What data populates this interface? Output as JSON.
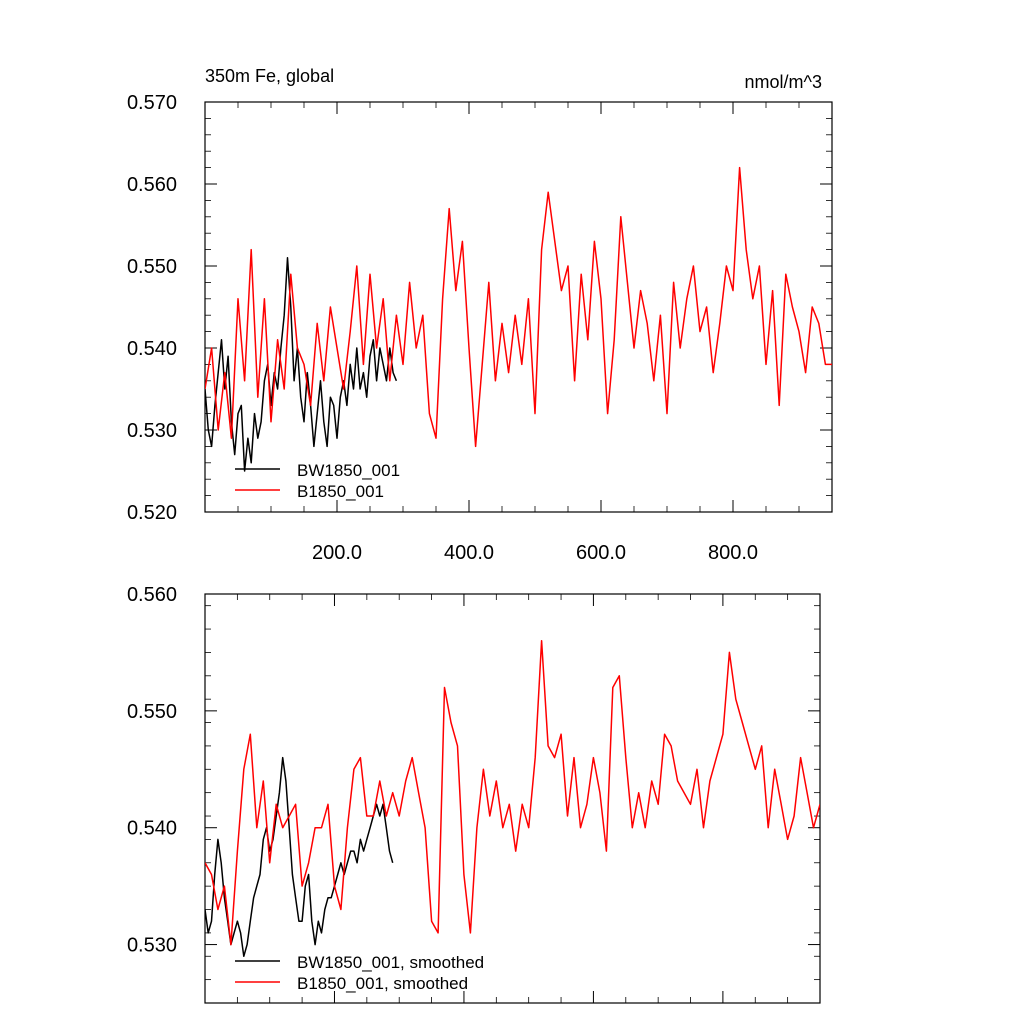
{
  "chart_data": [
    {
      "type": "line",
      "title": "350m Fe, global",
      "units": "nmol/m^3",
      "xlim": [
        0,
        950
      ],
      "ylim": [
        0.52,
        0.57
      ],
      "y_ticks": [
        0.52,
        0.53,
        0.54,
        0.55,
        0.56,
        0.57
      ],
      "y_tick_labels": [
        "0.520",
        "0.530",
        "0.540",
        "0.550",
        "0.560",
        "0.570"
      ],
      "x_ticks": [
        200,
        400,
        600,
        800
      ],
      "x_tick_labels": [
        "200.0",
        "400.0",
        "600.0",
        "800.0"
      ],
      "legend_position": "bottom-left",
      "series": [
        {
          "name": "BW1850_001",
          "color": "#000000",
          "x": [
            0,
            5,
            10,
            15,
            20,
            25,
            30,
            35,
            40,
            45,
            50,
            55,
            60,
            65,
            70,
            75,
            80,
            85,
            90,
            95,
            100,
            105,
            110,
            115,
            120,
            125,
            130,
            135,
            140,
            145,
            150,
            155,
            160,
            165,
            170,
            175,
            180,
            185,
            190,
            195,
            200,
            205,
            210,
            215,
            220,
            225,
            230,
            235,
            240,
            245,
            250,
            255,
            260,
            265,
            270,
            275,
            280,
            285,
            290
          ],
          "y": [
            0.535,
            0.53,
            0.528,
            0.533,
            0.537,
            0.541,
            0.535,
            0.539,
            0.531,
            0.527,
            0.532,
            0.533,
            0.525,
            0.529,
            0.526,
            0.532,
            0.529,
            0.531,
            0.536,
            0.538,
            0.533,
            0.537,
            0.535,
            0.54,
            0.544,
            0.551,
            0.545,
            0.536,
            0.54,
            0.534,
            0.531,
            0.537,
            0.533,
            0.528,
            0.532,
            0.536,
            0.531,
            0.528,
            0.534,
            0.533,
            0.529,
            0.534,
            0.536,
            0.533,
            0.538,
            0.535,
            0.54,
            0.535,
            0.537,
            0.534,
            0.539,
            0.541,
            0.536,
            0.54,
            0.538,
            0.536,
            0.54,
            0.537,
            0.536
          ]
        },
        {
          "name": "B1850_001",
          "color": "#ff0000",
          "x": [
            0,
            10,
            20,
            30,
            40,
            50,
            60,
            70,
            80,
            90,
            100,
            110,
            120,
            130,
            140,
            150,
            160,
            170,
            180,
            190,
            200,
            210,
            220,
            230,
            240,
            250,
            260,
            270,
            280,
            290,
            300,
            310,
            320,
            330,
            340,
            350,
            360,
            370,
            380,
            390,
            400,
            410,
            420,
            430,
            440,
            450,
            460,
            470,
            480,
            490,
            500,
            510,
            520,
            530,
            540,
            550,
            560,
            570,
            580,
            590,
            600,
            610,
            620,
            630,
            640,
            650,
            660,
            670,
            680,
            690,
            700,
            710,
            720,
            730,
            740,
            750,
            760,
            770,
            780,
            790,
            800,
            810,
            820,
            830,
            840,
            850,
            860,
            870,
            880,
            890,
            900,
            910,
            920,
            930,
            940,
            950
          ],
          "y": [
            0.535,
            0.54,
            0.53,
            0.537,
            0.529,
            0.546,
            0.536,
            0.552,
            0.534,
            0.546,
            0.531,
            0.541,
            0.535,
            0.549,
            0.54,
            0.538,
            0.533,
            0.543,
            0.536,
            0.545,
            0.54,
            0.535,
            0.542,
            0.55,
            0.538,
            0.549,
            0.54,
            0.546,
            0.536,
            0.544,
            0.538,
            0.548,
            0.54,
            0.544,
            0.532,
            0.529,
            0.546,
            0.557,
            0.547,
            0.553,
            0.54,
            0.528,
            0.538,
            0.548,
            0.536,
            0.543,
            0.537,
            0.544,
            0.538,
            0.546,
            0.532,
            0.552,
            0.559,
            0.553,
            0.547,
            0.55,
            0.536,
            0.549,
            0.541,
            0.553,
            0.546,
            0.532,
            0.541,
            0.556,
            0.548,
            0.54,
            0.547,
            0.543,
            0.536,
            0.544,
            0.532,
            0.548,
            0.54,
            0.546,
            0.55,
            0.542,
            0.545,
            0.537,
            0.543,
            0.55,
            0.547,
            0.562,
            0.552,
            0.546,
            0.55,
            0.538,
            0.547,
            0.533,
            0.549,
            0.545,
            0.542,
            0.537,
            0.545,
            0.543,
            0.538,
            0.538
          ]
        }
      ]
    },
    {
      "type": "line",
      "title": "",
      "xlim": [
        0,
        950
      ],
      "ylim": [
        0.525,
        0.56
      ],
      "y_ticks": [
        0.53,
        0.54,
        0.55,
        0.56
      ],
      "y_tick_labels": [
        "0.530",
        "0.540",
        "0.550",
        "0.560"
      ],
      "x_ticks": [
        200,
        400,
        600,
        800
      ],
      "x_tick_labels": [],
      "legend_position": "bottom-left",
      "series": [
        {
          "name": "BW1850_001, smoothed",
          "color": "#000000",
          "x": [
            0,
            5,
            10,
            15,
            20,
            25,
            30,
            35,
            40,
            45,
            50,
            55,
            60,
            65,
            70,
            75,
            80,
            85,
            90,
            95,
            100,
            105,
            110,
            115,
            120,
            125,
            130,
            135,
            140,
            145,
            150,
            155,
            160,
            165,
            170,
            175,
            180,
            185,
            190,
            195,
            200,
            205,
            210,
            215,
            220,
            225,
            230,
            235,
            240,
            245,
            250,
            255,
            260,
            265,
            270,
            275,
            280,
            285,
            290
          ],
          "y": [
            0.533,
            0.531,
            0.532,
            0.536,
            0.539,
            0.537,
            0.534,
            0.532,
            0.53,
            0.531,
            0.532,
            0.531,
            0.529,
            0.53,
            0.532,
            0.534,
            0.535,
            0.536,
            0.539,
            0.54,
            0.538,
            0.539,
            0.541,
            0.543,
            0.546,
            0.544,
            0.54,
            0.536,
            0.534,
            0.532,
            0.532,
            0.535,
            0.536,
            0.532,
            0.53,
            0.532,
            0.531,
            0.533,
            0.534,
            0.534,
            0.535,
            0.536,
            0.537,
            0.536,
            0.537,
            0.538,
            0.538,
            0.537,
            0.539,
            0.538,
            0.539,
            0.54,
            0.541,
            0.542,
            0.541,
            0.542,
            0.54,
            0.538,
            0.537
          ]
        },
        {
          "name": "B1850_001, smoothed",
          "color": "#ff0000",
          "x": [
            0,
            10,
            20,
            30,
            40,
            50,
            60,
            70,
            80,
            90,
            100,
            110,
            120,
            130,
            140,
            150,
            160,
            170,
            180,
            190,
            200,
            210,
            220,
            230,
            240,
            250,
            260,
            270,
            280,
            290,
            300,
            310,
            320,
            330,
            340,
            350,
            360,
            370,
            380,
            390,
            400,
            410,
            420,
            430,
            440,
            450,
            460,
            470,
            480,
            490,
            500,
            510,
            520,
            530,
            540,
            550,
            560,
            570,
            580,
            590,
            600,
            610,
            620,
            630,
            640,
            650,
            660,
            670,
            680,
            690,
            700,
            710,
            720,
            730,
            740,
            750,
            760,
            770,
            780,
            790,
            800,
            810,
            820,
            830,
            840,
            850,
            860,
            870,
            880,
            890,
            900,
            910,
            920,
            930,
            940,
            950
          ],
          "y": [
            0.537,
            0.536,
            0.533,
            0.535,
            0.53,
            0.538,
            0.545,
            0.548,
            0.54,
            0.544,
            0.537,
            0.542,
            0.54,
            0.541,
            0.542,
            0.535,
            0.537,
            0.54,
            0.54,
            0.542,
            0.535,
            0.533,
            0.54,
            0.545,
            0.546,
            0.541,
            0.541,
            0.544,
            0.541,
            0.543,
            0.541,
            0.544,
            0.546,
            0.543,
            0.54,
            0.532,
            0.531,
            0.552,
            0.549,
            0.547,
            0.536,
            0.531,
            0.54,
            0.545,
            0.541,
            0.544,
            0.54,
            0.542,
            0.538,
            0.542,
            0.54,
            0.546,
            0.556,
            0.547,
            0.546,
            0.548,
            0.541,
            0.546,
            0.54,
            0.542,
            0.546,
            0.543,
            0.538,
            0.552,
            0.553,
            0.546,
            0.54,
            0.543,
            0.54,
            0.544,
            0.542,
            0.548,
            0.547,
            0.544,
            0.543,
            0.542,
            0.545,
            0.54,
            0.544,
            0.546,
            0.548,
            0.555,
            0.551,
            0.549,
            0.547,
            0.545,
            0.547,
            0.54,
            0.545,
            0.542,
            0.539,
            0.541,
            0.546,
            0.543,
            0.54,
            0.542
          ]
        }
      ]
    }
  ]
}
